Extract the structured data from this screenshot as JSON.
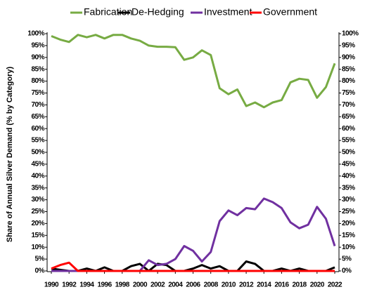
{
  "chart_data": {
    "type": "line",
    "y_label": "Share of Annual Silver Demand (% by Category)",
    "x": [
      1990,
      1991,
      1992,
      1993,
      1994,
      1995,
      1996,
      1997,
      1998,
      1999,
      2000,
      2001,
      2002,
      2003,
      2004,
      2005,
      2006,
      2007,
      2008,
      2009,
      2010,
      2011,
      2012,
      2013,
      2014,
      2015,
      2016,
      2017,
      2018,
      2019,
      2020,
      2021,
      2022
    ],
    "xlim": [
      1990,
      2022
    ],
    "xticks": [
      1990,
      1992,
      1994,
      1996,
      1998,
      2000,
      2002,
      2004,
      2006,
      2008,
      2010,
      2012,
      2014,
      2016,
      2018,
      2020,
      2022
    ],
    "ylim": [
      0,
      100
    ],
    "yticks": [
      {
        "value": 0,
        "label": "0%"
      },
      {
        "value": 5,
        "label": "5%"
      },
      {
        "value": 10,
        "label": "10%"
      },
      {
        "value": 15,
        "label": "15%"
      },
      {
        "value": 20,
        "label": "20%"
      },
      {
        "value": 25,
        "label": "25%"
      },
      {
        "value": 30,
        "label": "30%"
      },
      {
        "value": 35,
        "label": "35%"
      },
      {
        "value": 40,
        "label": "40%"
      },
      {
        "value": 45,
        "label": "45%"
      },
      {
        "value": 50,
        "label": "50%"
      },
      {
        "value": 55,
        "label": "55%"
      },
      {
        "value": 60,
        "label": "60%"
      },
      {
        "value": 65,
        "label": "65%"
      },
      {
        "value": 70,
        "label": "70%"
      },
      {
        "value": 75,
        "label": "75%"
      },
      {
        "value": 80,
        "label": "80%"
      },
      {
        "value": 85,
        "label": "85%"
      },
      {
        "value": 90,
        "label": "90%"
      },
      {
        "value": 95,
        "label": "95%"
      },
      {
        "value": 100,
        "label": "100%"
      }
    ],
    "y2lim": [
      0,
      100
    ],
    "y2ticks": [
      {
        "value": 0,
        "label": "0%"
      },
      {
        "value": 5,
        "label": "5%"
      },
      {
        "value": 10,
        "label": "10%"
      },
      {
        "value": 15,
        "label": "15%"
      },
      {
        "value": 20,
        "label": "20%"
      },
      {
        "value": 25,
        "label": "25%"
      },
      {
        "value": 30,
        "label": "30%"
      },
      {
        "value": 35,
        "label": "35%"
      },
      {
        "value": 40,
        "label": "40%"
      },
      {
        "value": 45,
        "label": "45%"
      },
      {
        "value": 50,
        "label": "50%"
      },
      {
        "value": 55,
        "label": "55%"
      },
      {
        "value": 60,
        "label": "60%"
      },
      {
        "value": 65,
        "label": "65%"
      },
      {
        "value": 70,
        "label": "70%"
      },
      {
        "value": 75,
        "label": "75%"
      },
      {
        "value": 80,
        "label": "80%"
      },
      {
        "value": 85,
        "label": "85%"
      },
      {
        "value": 90,
        "label": "90%"
      },
      {
        "value": 95,
        "label": "95%"
      },
      {
        "value": 100,
        "label": "100%"
      }
    ],
    "legend": "top",
    "series": [
      {
        "name": "Fabrication",
        "color": "#77ab43",
        "values": [
          99,
          97.5,
          96.5,
          99.5,
          98.5,
          99.5,
          98,
          99.5,
          99.5,
          98,
          97,
          95,
          94.5,
          94.5,
          94.3,
          89,
          90,
          93,
          91,
          77,
          74.5,
          76.5,
          69.5,
          71,
          69,
          71,
          72,
          79.5,
          81,
          80.5,
          73,
          77.5,
          87.5
        ]
      },
      {
        "name": "De-Hedging",
        "color": "#000000",
        "values": [
          1,
          0.5,
          0,
          0,
          1,
          0,
          1.5,
          0,
          0,
          2,
          3,
          0,
          3,
          2.5,
          0,
          0,
          1,
          2.5,
          1,
          2,
          0,
          0,
          4,
          3,
          0,
          0,
          1,
          0,
          1,
          0,
          0,
          0,
          1.5
        ]
      },
      {
        "name": "Investment",
        "color": "#7030a0",
        "values": [
          0,
          0,
          0,
          0,
          0,
          0,
          0,
          0,
          0,
          0,
          0,
          4.5,
          2.5,
          3,
          5,
          10.5,
          8.5,
          4,
          8,
          21,
          25.5,
          23.5,
          26.5,
          26,
          30.5,
          29,
          26.5,
          20.5,
          18,
          19.5,
          27,
          22,
          10.5
        ]
      },
      {
        "name": "Government",
        "color": "#ff0000",
        "values": [
          1,
          2.5,
          3.5,
          0,
          0,
          0,
          0,
          0,
          0,
          0,
          0,
          0,
          0,
          0,
          0,
          0,
          0,
          0,
          0,
          0,
          0,
          0,
          0,
          0,
          0,
          0,
          0,
          0,
          0,
          0,
          0,
          0,
          0
        ]
      }
    ]
  }
}
